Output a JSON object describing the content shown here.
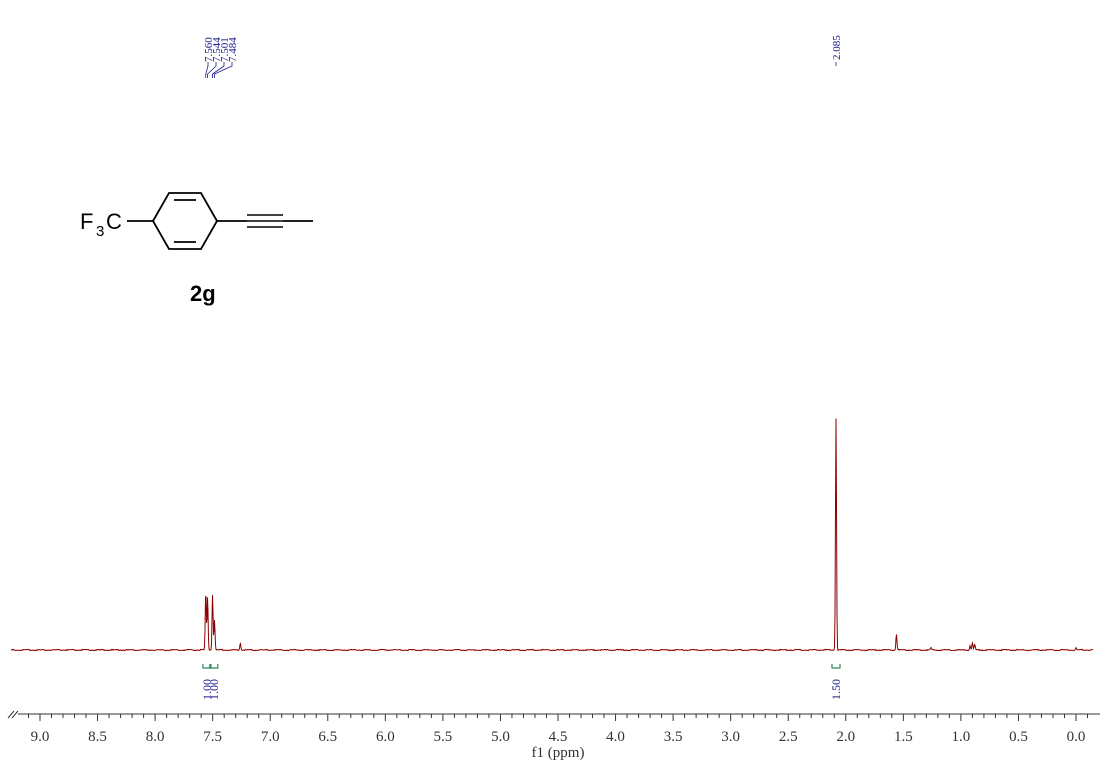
{
  "chart_data": {
    "type": "line",
    "xlabel": "f1 (ppm)",
    "x_reversed": true,
    "xlim": [
      9.25,
      -0.15
    ],
    "x_ticks": [
      "9.0",
      "8.5",
      "8.0",
      "7.5",
      "7.0",
      "6.5",
      "6.0",
      "5.5",
      "5.0",
      "4.5",
      "4.0",
      "3.5",
      "3.0",
      "2.5",
      "2.0",
      "1.5",
      "1.0",
      "0.5",
      "0.0"
    ],
    "line_color": "#8b0000",
    "series": [
      {
        "peaks": [
          {
            "ppm": 7.56,
            "height": 0.255
          },
          {
            "ppm": 7.544,
            "height": 0.23
          },
          {
            "ppm": 7.501,
            "height": 0.24
          },
          {
            "ppm": 7.484,
            "height": 0.13
          },
          {
            "ppm": 7.26,
            "height": 0.03
          },
          {
            "ppm": 2.085,
            "height": 1.0
          },
          {
            "ppm": 1.56,
            "height": 0.07
          },
          {
            "ppm": 1.26,
            "height": 0.01
          },
          {
            "ppm": 0.92,
            "height": 0.02
          },
          {
            "ppm": 0.9,
            "height": 0.03
          },
          {
            "ppm": 0.88,
            "height": 0.025
          },
          {
            "ppm": 0.0,
            "height": 0.01
          }
        ]
      }
    ],
    "peak_labels": [
      "7.560",
      "7.544",
      "7.501",
      "7.484",
      "2.085"
    ],
    "integrals": [
      {
        "center": 7.55,
        "value": "1.00"
      },
      {
        "center": 7.49,
        "value": "1.00"
      },
      {
        "center": 2.085,
        "value": "1.50"
      }
    ],
    "integral_color": "#2e8b57",
    "label_color": "#1a1a8c",
    "compound": {
      "substituent": "F3C",
      "substituent_main": "F",
      "substituent_sub": "3",
      "substituent_tail": "C",
      "label": "2g"
    }
  }
}
